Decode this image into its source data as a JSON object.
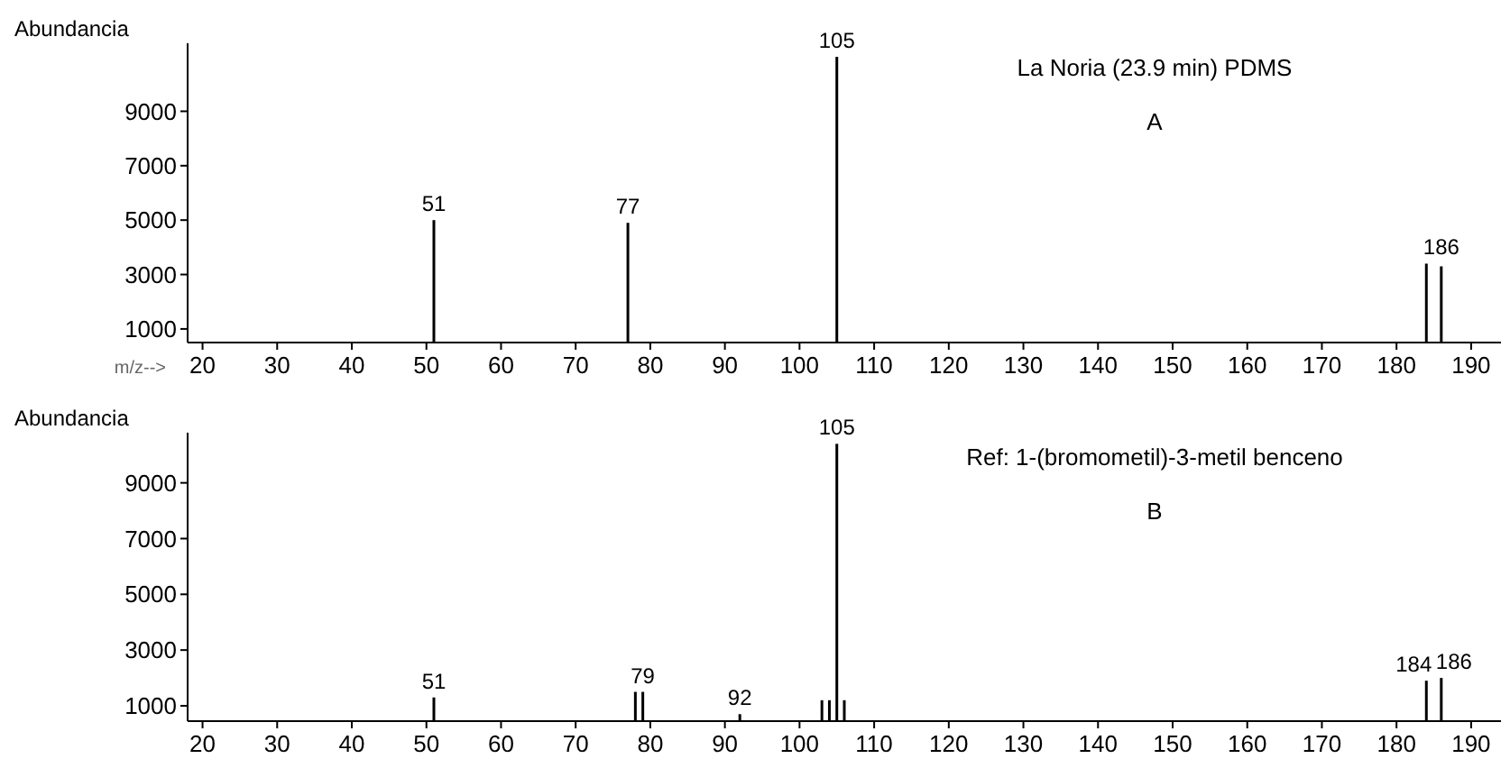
{
  "chart_data": [
    {
      "type": "bar",
      "ylabel": "Abundancia",
      "xlabel": "m/z-->",
      "color": "#000000",
      "x": [
        51,
        77,
        105,
        184,
        186
      ],
      "values": [
        5000,
        4900,
        11000,
        3400,
        3300
      ],
      "xlim": [
        18,
        194
      ],
      "ylim": [
        500,
        11500
      ],
      "xticks": [
        20,
        30,
        40,
        50,
        60,
        70,
        80,
        90,
        100,
        110,
        120,
        130,
        140,
        150,
        160,
        170,
        180,
        190
      ],
      "yticks": [
        1000,
        3000,
        5000,
        7000,
        9000
      ],
      "annotations": [
        {
          "text": "105",
          "x": 105,
          "y": 11000
        },
        {
          "text": "51",
          "x": 51,
          "y": 5000
        },
        {
          "text": "77",
          "x": 77,
          "y": 4900
        },
        {
          "text": "186",
          "x": 186,
          "y": 3400
        },
        "La Noria (23.9 min) PDMS",
        "A"
      ]
    },
    {
      "type": "bar",
      "ylabel": "Abundancia",
      "color": "#000000",
      "x": [
        51,
        78,
        79,
        92,
        103,
        104,
        105,
        106,
        184,
        186
      ],
      "values": [
        1300,
        1500,
        1500,
        700,
        1200,
        1200,
        10400,
        1200,
        1900,
        2000
      ],
      "xlim": [
        18,
        194
      ],
      "ylim": [
        450,
        10800
      ],
      "xticks": [
        20,
        30,
        40,
        50,
        60,
        70,
        80,
        90,
        100,
        110,
        120,
        130,
        140,
        150,
        160,
        170,
        180,
        190
      ],
      "yticks": [
        1000,
        3000,
        5000,
        7000,
        9000
      ],
      "annotations": [
        {
          "text": "105",
          "x": 105,
          "y": 10400
        },
        {
          "text": "51",
          "x": 51,
          "y": 1300
        },
        {
          "text": "79",
          "x": 79,
          "y": 1500
        },
        {
          "text": "92",
          "x": 92,
          "y": 700
        },
        {
          "text": "184",
          "x": 184,
          "y": 1900
        },
        {
          "text": "186",
          "x": 186,
          "y": 2000
        },
        "Ref: 1-(bromometil)-3-metil benceno",
        "B"
      ]
    }
  ]
}
